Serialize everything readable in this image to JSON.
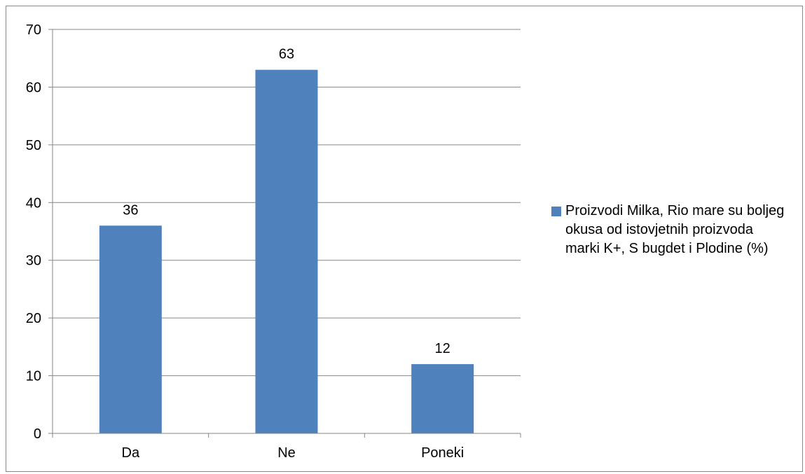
{
  "chart_data": {
    "type": "bar",
    "categories": [
      "Da",
      "Ne",
      "Poneki"
    ],
    "series": [
      {
        "name": "Proizvodi Milka, Rio mare su boljeg okusa od istovjetnih proizvoda marki K+, S bugdet i Plodine (%)",
        "values": [
          36,
          63,
          12
        ],
        "color": "#4f81bd"
      }
    ],
    "data_labels": [
      "36",
      "63",
      "12"
    ],
    "yticks": [
      "0",
      "10",
      "20",
      "30",
      "40",
      "50",
      "60",
      "70"
    ],
    "ylim": [
      0,
      70
    ],
    "grid": true,
    "legend_position": "right"
  }
}
